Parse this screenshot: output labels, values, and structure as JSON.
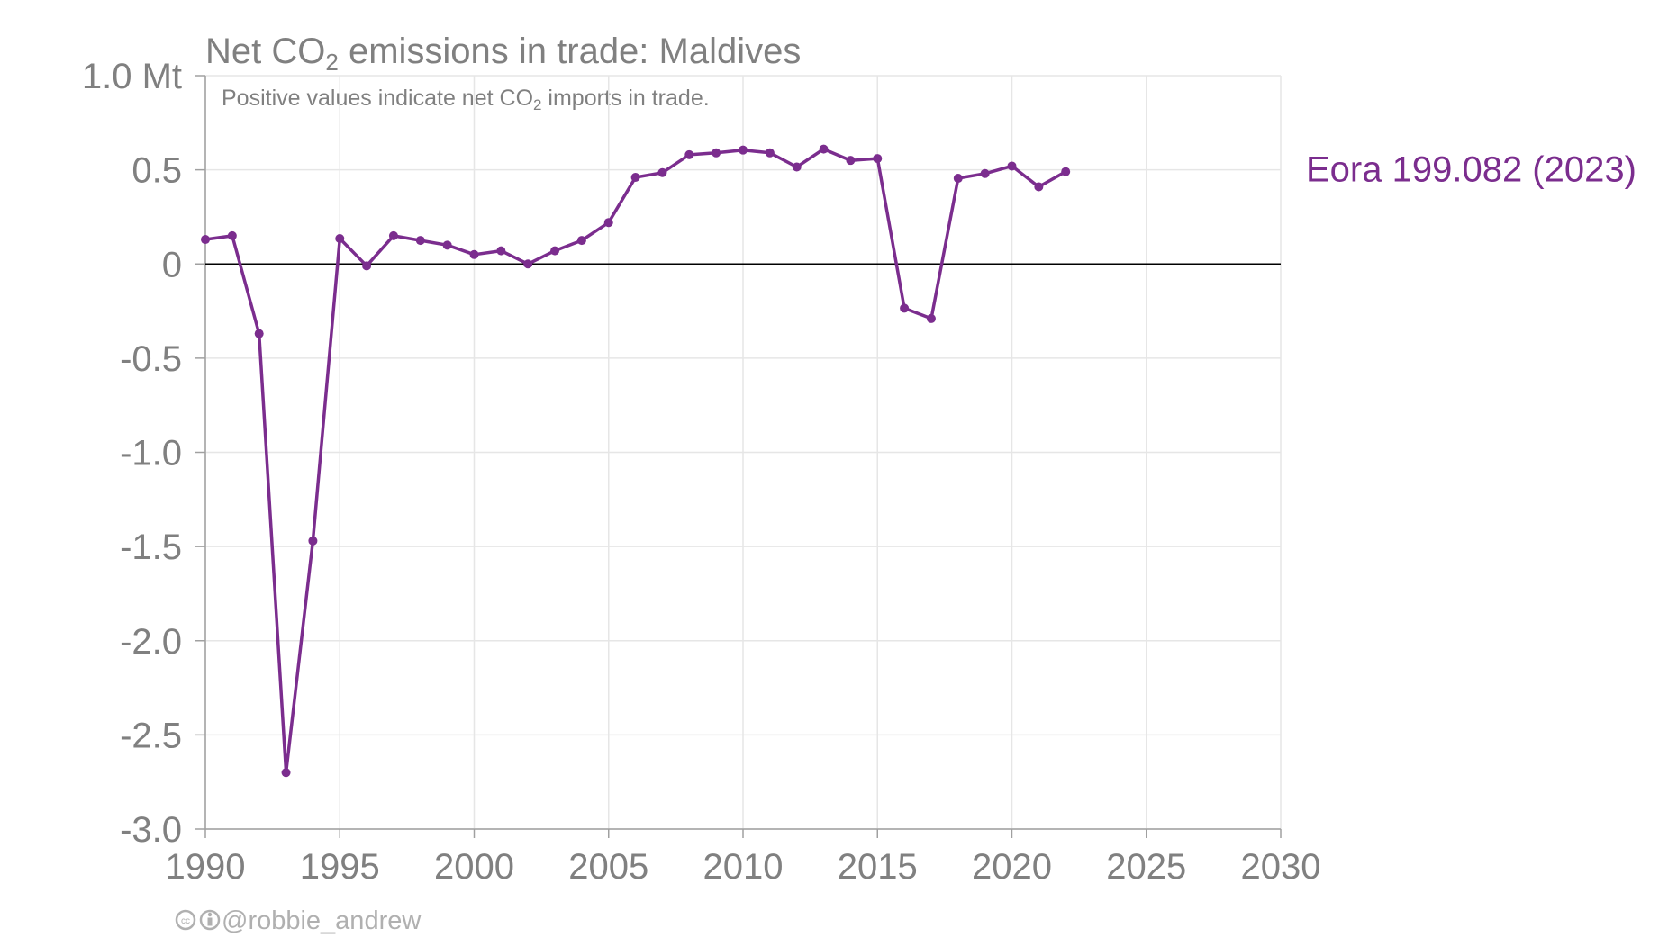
{
  "title": {
    "prefix": "Net CO",
    "subscript": "2",
    "suffix": " emissions in trade: Maldives"
  },
  "subtitle": {
    "prefix": "Positive values indicate net CO",
    "subscript": "2",
    "suffix": " imports in trade."
  },
  "credit": {
    "icons": [
      "creative-commons-icon",
      "attribution-icon"
    ],
    "handle": "@robbie_andrew"
  },
  "colors": {
    "series": "#7b2d8e",
    "axis_text": "#808080",
    "grid": "#e6e6e6",
    "zero_line": "#000000",
    "credit": "#b0b0b0"
  },
  "chart_data": {
    "type": "line",
    "title": "Net CO2 emissions in trade: Maldives",
    "subtitle": "Positive values indicate net CO2 imports in trade.",
    "xlabel": "",
    "ylabel": "",
    "y_unit": "Mt",
    "xlim": [
      1990,
      2030
    ],
    "ylim": [
      -3.0,
      1.0
    ],
    "x_ticks": [
      1990,
      1995,
      2000,
      2005,
      2010,
      2015,
      2020,
      2025,
      2030
    ],
    "x_tick_labels": [
      "1990",
      "1995",
      "2000",
      "2005",
      "2010",
      "2015",
      "2020",
      "2025",
      "2030"
    ],
    "y_ticks": [
      1.0,
      0.5,
      0,
      -0.5,
      -1.0,
      -1.5,
      -2.0,
      -2.5,
      -3.0
    ],
    "y_tick_labels": [
      "1.0 Mt",
      "0.5",
      "0",
      "-0.5",
      "-1.0",
      "-1.5",
      "-2.0",
      "-2.5",
      "-3.0"
    ],
    "grid": true,
    "zero_line": true,
    "series": [
      {
        "name": "Eora 199.082 (2023)",
        "label": "Eora 199.082 (2023)",
        "color": "#7b2d8e",
        "x": [
          1990,
          1991,
          1992,
          1993,
          1994,
          1995,
          1996,
          1997,
          1998,
          1999,
          2000,
          2001,
          2002,
          2003,
          2004,
          2005,
          2006,
          2007,
          2008,
          2009,
          2010,
          2011,
          2012,
          2013,
          2014,
          2015,
          2016,
          2017,
          2018,
          2019,
          2020,
          2021,
          2022
        ],
        "values": [
          0.13,
          0.15,
          -0.37,
          -2.7,
          -1.47,
          0.135,
          -0.01,
          0.15,
          0.125,
          0.1,
          0.05,
          0.07,
          0.0,
          0.07,
          0.125,
          0.22,
          0.46,
          0.485,
          0.58,
          0.59,
          0.605,
          0.59,
          0.515,
          0.61,
          0.55,
          0.56,
          -0.235,
          -0.29,
          0.455,
          0.48,
          0.52,
          0.41,
          0.49
        ]
      }
    ]
  }
}
